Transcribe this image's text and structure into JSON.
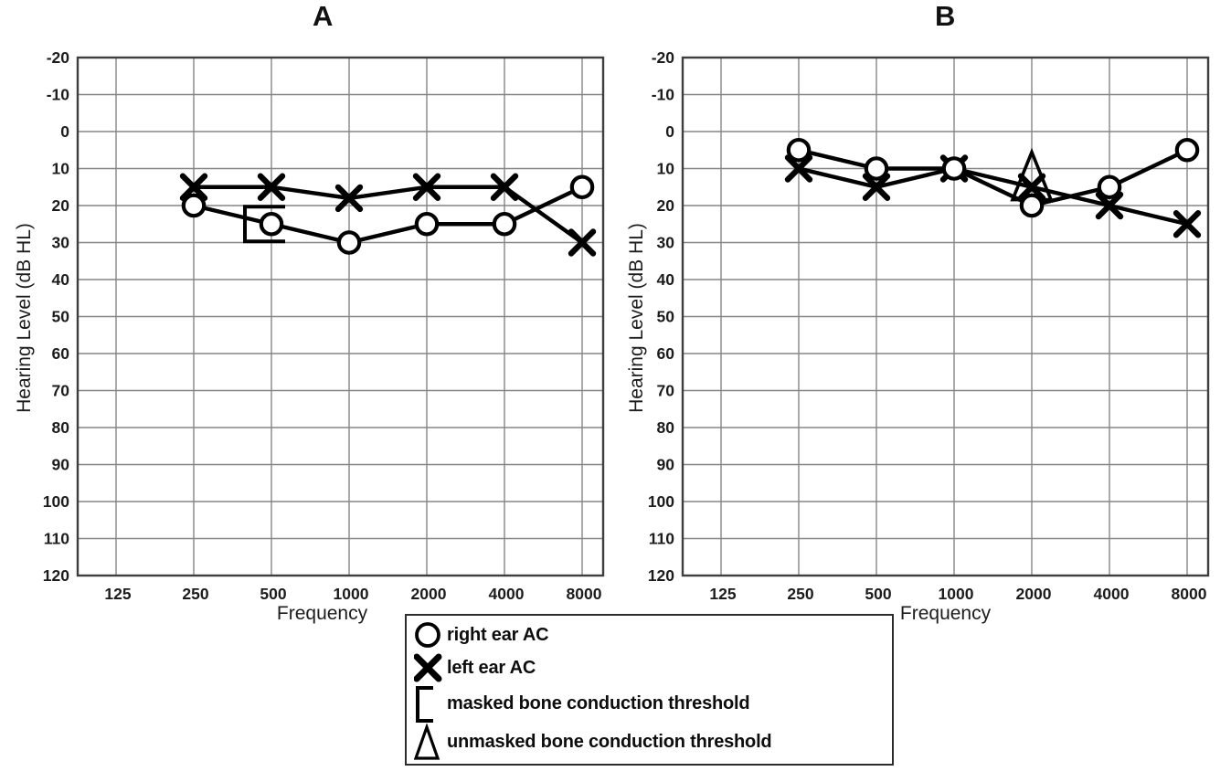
{
  "figure": {
    "background": "#ffffff",
    "colors": {
      "data": "#000000",
      "grid": "#858585",
      "frame": "#3e3e3e",
      "text": "#1c1c1c"
    }
  },
  "legend": {
    "items": [
      {
        "symbol": "circle",
        "label": "right ear AC"
      },
      {
        "symbol": "x",
        "label": "left ear AC"
      },
      {
        "symbol": "bracket",
        "label": "masked bone conduction threshold"
      },
      {
        "symbol": "triangle",
        "label": "unmasked bone conduction threshold"
      }
    ]
  },
  "chart_data": [
    {
      "type": "line",
      "title": "A",
      "xlabel": "Frequency",
      "ylabel": "Hearing Level (dB HL)",
      "x_ticks": [
        125,
        250,
        500,
        1000,
        2000,
        4000,
        8000
      ],
      "y_ticks": [
        -20,
        -10,
        0,
        10,
        20,
        30,
        40,
        50,
        60,
        70,
        80,
        90,
        100,
        110,
        120
      ],
      "ylim": [
        -20,
        120
      ],
      "y_axis_reversed": true,
      "grid": true,
      "series": [
        {
          "name": "right ear AC",
          "marker": "circle",
          "line": true,
          "x": [
            250,
            500,
            1000,
            2000,
            4000,
            8000
          ],
          "values": [
            20,
            25,
            30,
            25,
            25,
            15
          ]
        },
        {
          "name": "left ear AC",
          "marker": "x",
          "line": true,
          "x": [
            250,
            500,
            1000,
            2000,
            4000,
            8000
          ],
          "values": [
            15,
            15,
            18,
            15,
            15,
            30
          ]
        },
        {
          "name": "masked bone conduction threshold",
          "marker": "bracket",
          "line": false,
          "x": [
            500
          ],
          "values": [
            25
          ]
        }
      ]
    },
    {
      "type": "line",
      "title": "B",
      "xlabel": "Frequency",
      "ylabel": "Hearing Level (dB HL)",
      "x_ticks": [
        125,
        250,
        500,
        1000,
        2000,
        4000,
        8000
      ],
      "y_ticks": [
        -20,
        -10,
        0,
        10,
        20,
        30,
        40,
        50,
        60,
        70,
        80,
        90,
        100,
        110,
        120
      ],
      "ylim": [
        -20,
        120
      ],
      "y_axis_reversed": true,
      "grid": true,
      "series": [
        {
          "name": "right ear AC",
          "marker": "circle",
          "line": true,
          "x": [
            250,
            500,
            1000,
            2000,
            4000,
            8000
          ],
          "values": [
            5,
            10,
            10,
            20,
            15,
            5
          ]
        },
        {
          "name": "left ear AC",
          "marker": "x",
          "line": true,
          "x": [
            250,
            500,
            1000,
            2000,
            4000,
            8000
          ],
          "values": [
            10,
            15,
            10,
            15,
            20,
            25
          ]
        },
        {
          "name": "unmasked bone conduction threshold",
          "marker": "triangle",
          "line": false,
          "x": [
            2000
          ],
          "values": [
            12
          ]
        }
      ]
    }
  ]
}
